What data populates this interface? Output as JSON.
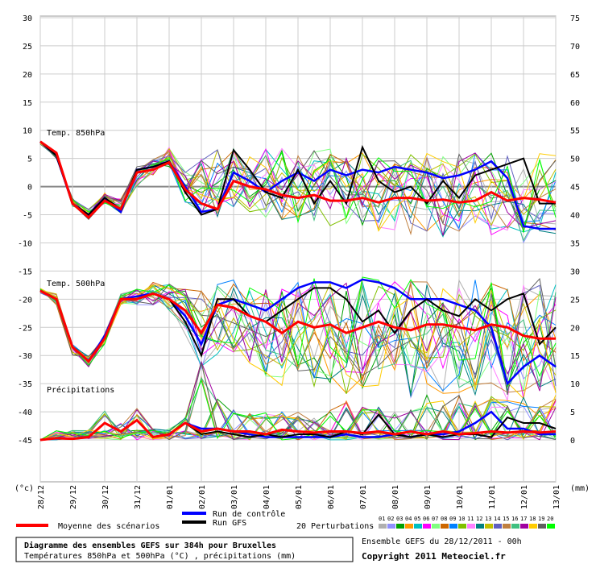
{
  "chart_data": {
    "type": "line",
    "title": "Diagramme des ensembles GEFS sur 384h pour Bruxelles",
    "subtitle": "Températures 850hPa et 500hPa (°C) , précipitations (mm)",
    "run_info": "Ensemble GEFS du 28/12/2011 - 00h",
    "copyright": "Copyright 2011 Meteociel.fr",
    "left_unit": "(°c)",
    "right_unit": "(mm)",
    "left_ticks": [
      "30",
      "25",
      "20",
      "15",
      "10",
      "5",
      "0",
      "-5",
      "-10",
      "-15",
      "-20",
      "-25",
      "-30",
      "-35",
      "-40",
      "-45"
    ],
    "right_ticks": [
      "75",
      "70",
      "65",
      "60",
      "55",
      "50",
      "45",
      "40",
      "35",
      "30",
      "25",
      "20",
      "15",
      "10",
      "5",
      "0"
    ],
    "x_labels": [
      "28/12",
      "29/12",
      "30/12",
      "31/12",
      "01/01",
      "02/01",
      "03/01",
      "04/01",
      "05/01",
      "06/01",
      "07/01",
      "08/01",
      "09/01",
      "10/01",
      "11/01",
      "12/01",
      "13/01"
    ],
    "panels": {
      "t850": "Temp. 850hPa",
      "t500": "Temp. 500hPa",
      "precip": "Précipitations"
    },
    "legend": {
      "mean": "Moyenne des scénarios",
      "control": "Run de contrôle",
      "gfs": "Run GFS",
      "perturbations": "20 Perturbations",
      "pert_numbers": [
        "01",
        "02",
        "03",
        "04",
        "05",
        "06",
        "07",
        "08",
        "09",
        "10",
        "11",
        "12",
        "13",
        "14",
        "15",
        "16",
        "17",
        "18",
        "19",
        "20"
      ]
    },
    "colors": {
      "mean": "#ff0000",
      "control": "#0000ff",
      "gfs": "#000000",
      "perturbations": [
        "#b0b0b0",
        "#9090ff",
        "#00a000",
        "#ff9900",
        "#00c0c0",
        "#ff00ff",
        "#80ff80",
        "#cc6600",
        "#0080ff",
        "#80c000",
        "#ff80ff",
        "#008080",
        "#c0c000",
        "#6060c0",
        "#c08040",
        "#40c080",
        "#a000a0",
        "#ffcc00",
        "#606060",
        "#00ff00"
      ]
    },
    "series": [
      {
        "name": "Temp. 850hPa — Moyenne des scénarios",
        "x": [
          0,
          0.5,
          1,
          1.5,
          2,
          2.5,
          3,
          3.5,
          4,
          4.5,
          5,
          5.5,
          6,
          6.5,
          7,
          7.5,
          8,
          8.5,
          9,
          9.5,
          10,
          10.5,
          11,
          11.5,
          12,
          12.5,
          13,
          13.5,
          14,
          14.5,
          15,
          15.5,
          16
        ],
        "values": [
          8,
          6,
          -3,
          -5.5,
          -2.5,
          -4,
          2.5,
          3,
          4.3,
          -0.5,
          -3,
          -4,
          1,
          0,
          -0.5,
          -1.5,
          -2,
          -1.5,
          -2.5,
          -2.5,
          -2,
          -2.8,
          -2,
          -2,
          -2.5,
          -2.3,
          -2.8,
          -2.5,
          -1,
          -2.5,
          -2,
          -2.3,
          -2.8
        ]
      },
      {
        "name": "Temp. 850hPa — Run de contrôle",
        "x": [
          0,
          0.5,
          1,
          1.5,
          2,
          2.5,
          3,
          3.5,
          4,
          4.5,
          5,
          5.5,
          6,
          6.5,
          7,
          7.5,
          8,
          8.5,
          9,
          9.5,
          10,
          10.5,
          11,
          11.5,
          12,
          12.5,
          13,
          13.5,
          14,
          14.5,
          15,
          15.5,
          16
        ],
        "values": [
          8,
          5.5,
          -3,
          -5,
          -2,
          -4.5,
          3,
          3.5,
          4.5,
          0,
          -4.5,
          -4,
          2.5,
          1,
          -1,
          1,
          2.5,
          1,
          3,
          2,
          3,
          2.5,
          3.5,
          3,
          2.5,
          1.5,
          2,
          3,
          4.5,
          1.5,
          -7,
          -7.5,
          -7.5
        ]
      },
      {
        "name": "Temp. 850hPa — Run GFS",
        "x": [
          0,
          0.5,
          1,
          1.5,
          2,
          2.5,
          3,
          3.5,
          4,
          4.5,
          5,
          5.5,
          6,
          6.5,
          7,
          7.5,
          8,
          8.5,
          9,
          9.5,
          10,
          10.5,
          11,
          11.5,
          12,
          12.5,
          13,
          13.5,
          14,
          14.5,
          15,
          15.5,
          16
        ],
        "values": [
          8,
          5.5,
          -3,
          -5,
          -2,
          -4,
          3,
          3.5,
          4.5,
          -1,
          -5,
          -4,
          6.5,
          3,
          -1,
          -2,
          3,
          -3,
          1,
          -3,
          7,
          1,
          -1,
          0,
          -3,
          1,
          -2,
          2,
          3,
          4,
          5,
          -3,
          -3
        ]
      },
      {
        "name": "Temp. 500hPa — Moyenne des scénarios",
        "x": [
          0,
          0.5,
          1,
          1.5,
          2,
          2.5,
          3,
          3.5,
          4,
          4.5,
          5,
          5.5,
          6,
          6.5,
          7,
          7.5,
          8,
          8.5,
          9,
          9.5,
          10,
          10.5,
          11,
          11.5,
          12,
          12.5,
          13,
          13.5,
          14,
          14.5,
          15,
          15.5,
          16
        ],
        "values": [
          -18.5,
          -20,
          -28.5,
          -31,
          -27,
          -20,
          -20,
          -19,
          -20,
          -22,
          -26,
          -21,
          -21.5,
          -23,
          -24,
          -26,
          -24,
          -25,
          -24.5,
          -26,
          -25,
          -24,
          -25,
          -25.5,
          -24.5,
          -24.5,
          -25,
          -25.5,
          -24.5,
          -25,
          -26.5,
          -27,
          -27
        ]
      },
      {
        "name": "Temp. 500hPa — Run de contrôle",
        "x": [
          0,
          0.5,
          1,
          1.5,
          2,
          2.5,
          3,
          3.5,
          4,
          4.5,
          5,
          5.5,
          6,
          6.5,
          7,
          7.5,
          8,
          8.5,
          9,
          9.5,
          10,
          10.5,
          11,
          11.5,
          12,
          12.5,
          13,
          13.5,
          14,
          14.5,
          15,
          15.5,
          16
        ],
        "values": [
          -18.5,
          -20,
          -28.5,
          -31,
          -26.5,
          -20,
          -19.5,
          -19,
          -20,
          -23,
          -28,
          -21,
          -20,
          -21,
          -22,
          -20,
          -18,
          -17,
          -17,
          -18,
          -16.5,
          -17,
          -18,
          -20,
          -20,
          -20,
          -21,
          -22,
          -25,
          -35,
          -32,
          -30,
          -32
        ]
      },
      {
        "name": "Temp. 500hPa — Run GFS",
        "x": [
          0,
          0.5,
          1,
          1.5,
          2,
          2.5,
          3,
          3.5,
          4,
          4.5,
          5,
          5.5,
          6,
          6.5,
          7,
          7.5,
          8,
          8.5,
          9,
          9.5,
          10,
          10.5,
          11,
          11.5,
          12,
          12.5,
          13,
          13.5,
          14,
          14.5,
          15,
          15.5,
          16
        ],
        "values": [
          -18.5,
          -20,
          -28.5,
          -31,
          -27,
          -20,
          -20,
          -19,
          -20,
          -24,
          -30,
          -20,
          -20,
          -23,
          -24,
          -22,
          -20,
          -18,
          -18,
          -20,
          -24,
          -22,
          -26,
          -22,
          -20,
          -22,
          -23,
          -20,
          -22,
          -20,
          -19,
          -28,
          -25
        ]
      },
      {
        "name": "Précipitations — Moyenne des scénarios",
        "x": [
          0,
          0.5,
          1,
          1.5,
          2,
          2.5,
          3,
          3.5,
          4,
          4.5,
          5,
          5.5,
          6,
          6.5,
          7,
          7.5,
          8,
          8.5,
          9,
          9.5,
          10,
          10.5,
          11,
          11.5,
          12,
          12.5,
          13,
          13.5,
          14,
          14.5,
          15,
          15.5,
          16
        ],
        "values": [
          0,
          0.3,
          0.2,
          0.5,
          3,
          1.5,
          3.5,
          0.5,
          1,
          3,
          1.5,
          2,
          1.5,
          1.5,
          1,
          1.8,
          1.5,
          1.3,
          1.5,
          1.5,
          1.2,
          1.5,
          1,
          1.5,
          1,
          1.5,
          1,
          1.2,
          1.5,
          1.3,
          1.5,
          1.3,
          1.5
        ]
      },
      {
        "name": "Précipitations — Run de contrôle",
        "x": [
          0,
          0.5,
          1,
          1.5,
          2,
          2.5,
          3,
          3.5,
          4,
          4.5,
          5,
          5.5,
          6,
          6.5,
          7,
          7.5,
          8,
          8.5,
          9,
          9.5,
          10,
          10.5,
          11,
          11.5,
          12,
          12.5,
          13,
          13.5,
          14,
          14.5,
          15,
          15.5,
          16
        ],
        "values": [
          0,
          0.3,
          0.2,
          0.5,
          3,
          1.5,
          3.5,
          0.5,
          1,
          3,
          2,
          2,
          1.5,
          1,
          0.5,
          0.5,
          0.5,
          0.5,
          0.5,
          1,
          0.5,
          0.5,
          1,
          0.5,
          1,
          1,
          1.5,
          3,
          5,
          2,
          2,
          1,
          1
        ]
      },
      {
        "name": "Précipitations — Run GFS",
        "x": [
          0,
          0.5,
          1,
          1.5,
          2,
          2.5,
          3,
          3.5,
          4,
          4.5,
          5,
          5.5,
          6,
          6.5,
          7,
          7.5,
          8,
          8.5,
          9,
          9.5,
          10,
          10.5,
          11,
          11.5,
          12,
          12.5,
          13,
          13.5,
          14,
          14.5,
          15,
          15.5,
          16
        ],
        "values": [
          0,
          0.3,
          0.2,
          0.5,
          3,
          1.5,
          3.5,
          0.5,
          1,
          3,
          1,
          1.5,
          1,
          0.5,
          1,
          0.5,
          1,
          1,
          0.5,
          1.5,
          1,
          4.5,
          1,
          0.5,
          1,
          0.5,
          1,
          1,
          0.5,
          4,
          3,
          3,
          2
        ]
      }
    ],
    "perturbation_bands": {
      "t850_min": [
        7.5,
        5,
        -3.5,
        -6,
        -3,
        -5,
        0,
        2,
        3.5,
        -3,
        -6,
        -6,
        -5,
        -5,
        -6,
        -6,
        -7,
        -7,
        -7,
        -7,
        -7,
        -8,
        -8,
        -9,
        -8,
        -9,
        -8,
        -9,
        -9,
        -9,
        -10,
        -9,
        -9
      ],
      "t850_max": [
        8,
        6,
        -2,
        -4,
        -1,
        -2,
        4,
        5,
        7,
        3,
        5,
        7,
        7,
        6,
        7,
        7,
        6,
        7,
        7,
        7,
        6,
        6,
        6,
        6,
        6,
        6,
        6,
        6,
        6,
        6,
        6,
        6,
        6
      ],
      "t500_min": [
        -19,
        -21,
        -30,
        -32,
        -28,
        -21,
        -21,
        -21,
        -22,
        -27,
        -33,
        -30,
        -30,
        -32,
        -34,
        -36,
        -33,
        -36,
        -36,
        -37,
        -36,
        -36,
        -37,
        -38,
        -35,
        -37,
        -38,
        -37,
        -36,
        -38,
        -38,
        -37,
        -37
      ],
      "t500_max": [
        -18,
        -19,
        -28,
        -30,
        -26,
        -19,
        -18,
        -17,
        -17,
        -18,
        -18,
        -17,
        -16,
        -17,
        -17,
        -17,
        -16,
        -16,
        -16,
        -16,
        -16,
        -16,
        -16,
        -16,
        -16,
        -16,
        -16,
        -16,
        -16,
        -16,
        -16,
        -16,
        -17
      ],
      "precip_max": [
        0,
        0.5,
        0.5,
        1.5,
        6,
        3,
        6,
        2,
        2,
        4,
        15,
        8,
        6,
        5,
        5,
        5,
        5,
        4,
        6,
        7,
        6,
        6,
        5,
        6,
        8,
        7,
        8,
        7,
        8,
        7,
        8,
        6,
        8
      ]
    },
    "xlim": [
      0,
      16
    ],
    "temp_ylim": [
      -45,
      30
    ],
    "precip_ylim": [
      0,
      75
    ],
    "grid": true
  }
}
